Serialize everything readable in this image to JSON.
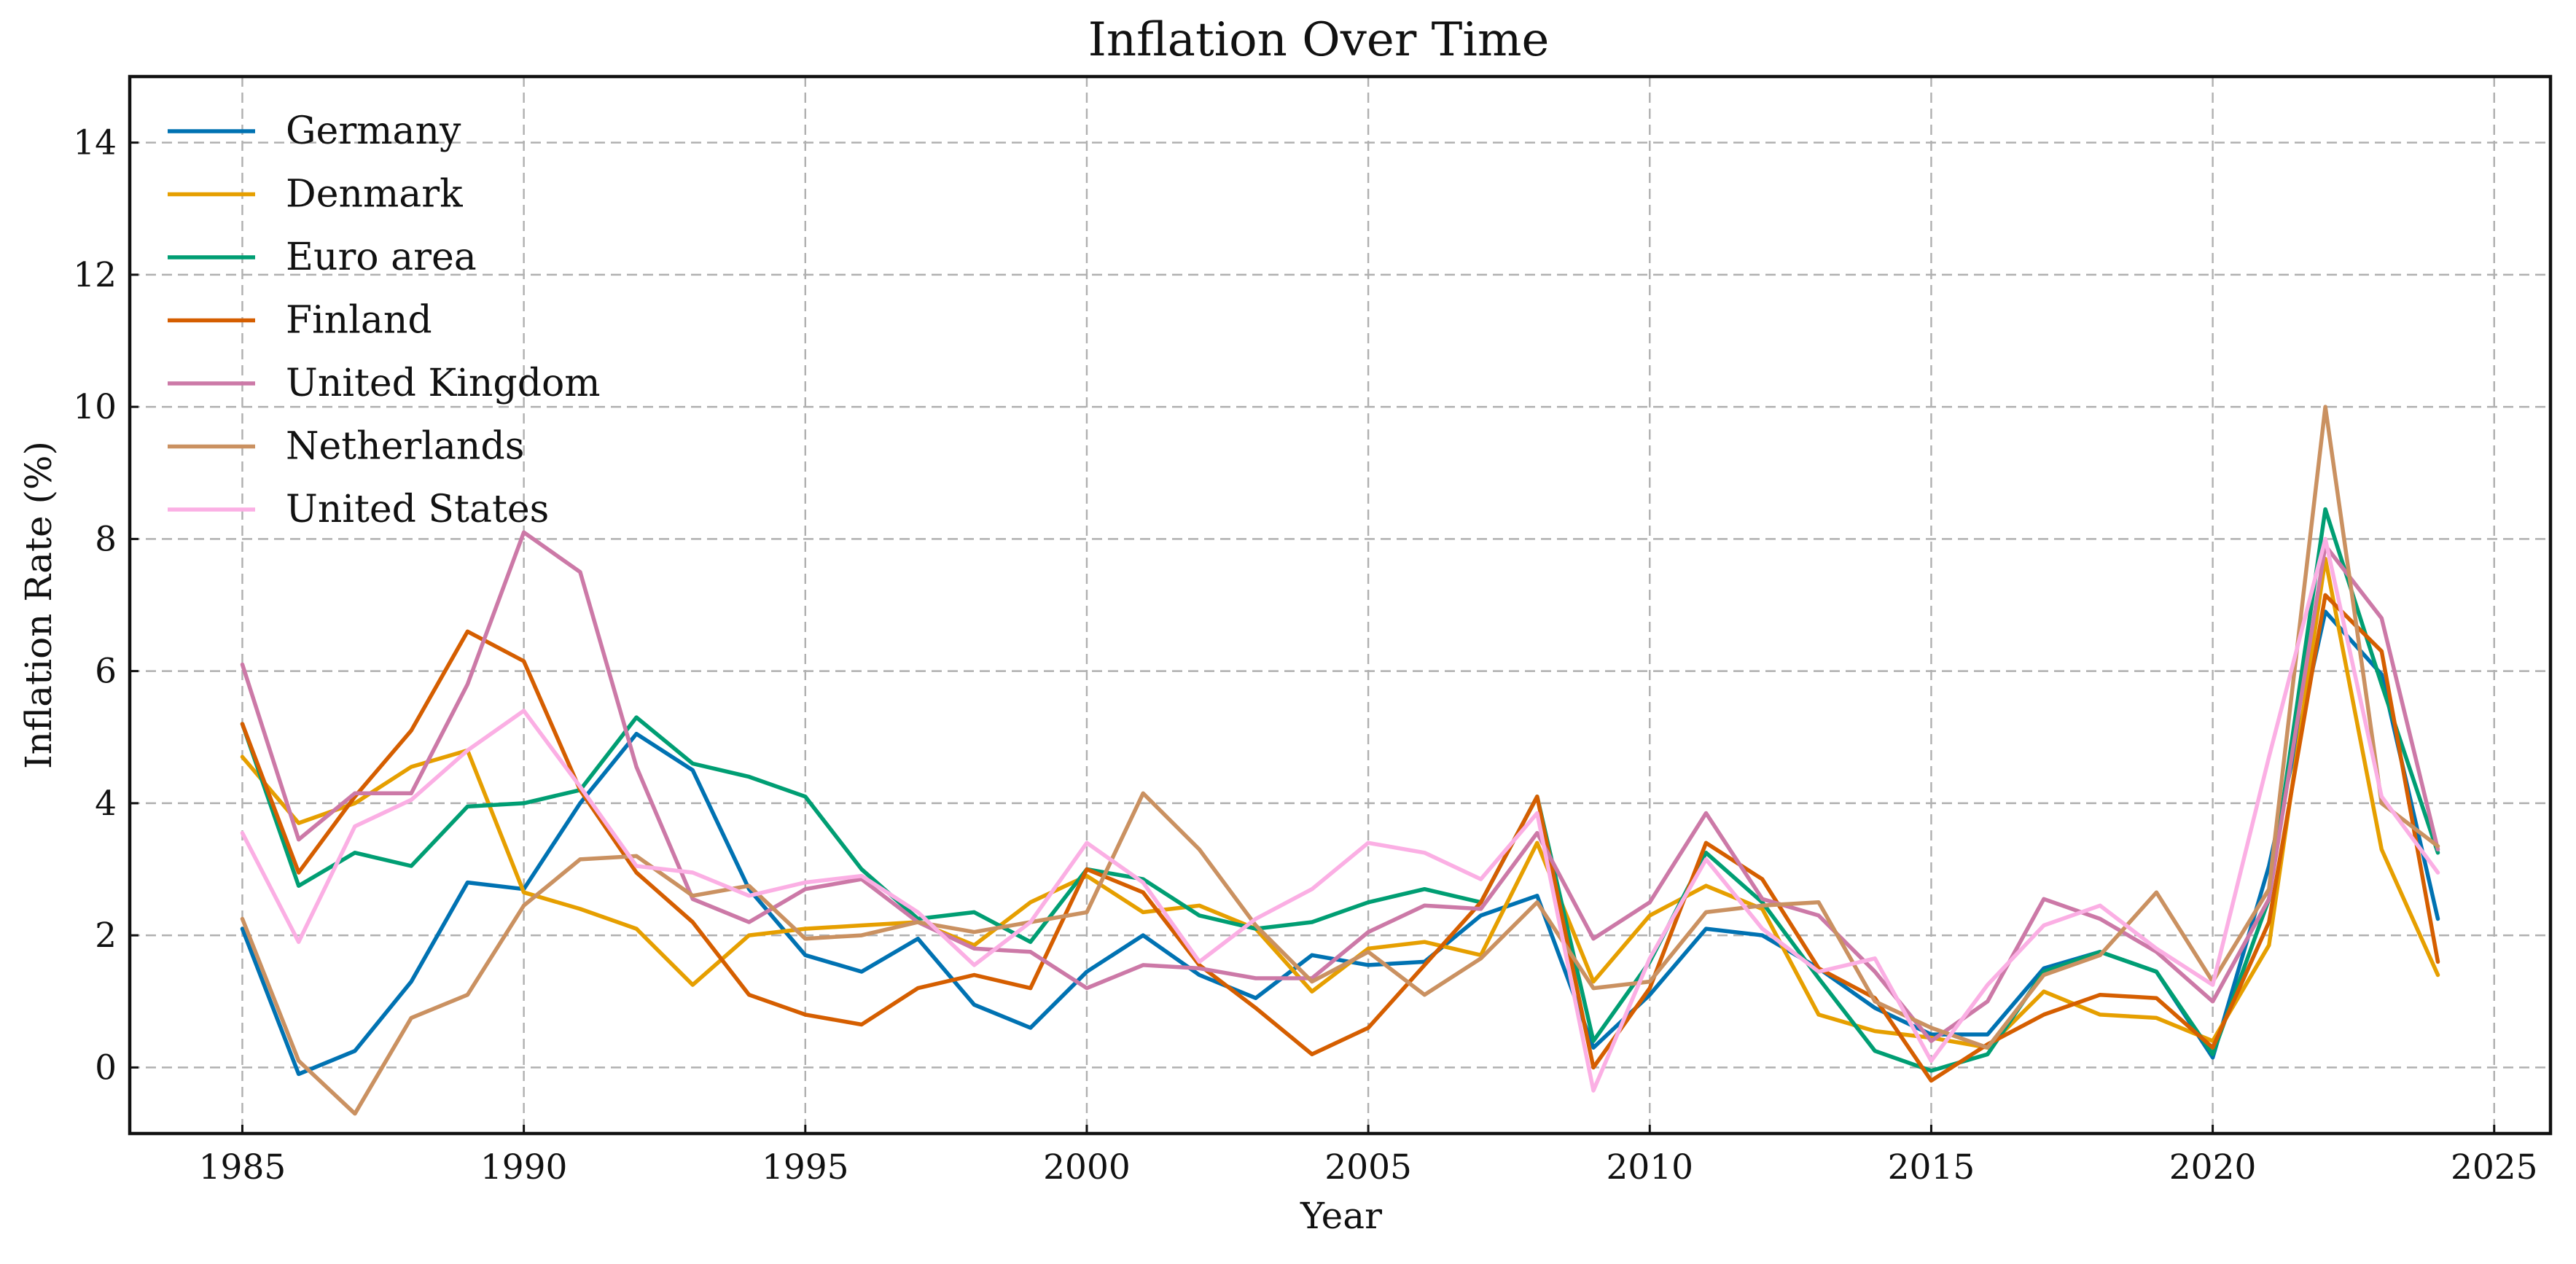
{
  "chart_data": {
    "type": "line",
    "title": "Inflation Over Time",
    "xlabel": "Year",
    "ylabel": "Inflation Rate (%)",
    "xlim": [
      1983,
      2026
    ],
    "ylim": [
      -1,
      15
    ],
    "xticks": [
      1985,
      1990,
      1995,
      2000,
      2005,
      2010,
      2015,
      2020,
      2025
    ],
    "yticks": [
      0,
      2,
      4,
      6,
      8,
      10,
      12,
      14
    ],
    "grid": true,
    "legend_position": "top-left",
    "x": [
      1985,
      1986,
      1987,
      1988,
      1989,
      1990,
      1991,
      1992,
      1993,
      1994,
      1995,
      1996,
      1997,
      1998,
      1999,
      2000,
      2001,
      2002,
      2003,
      2004,
      2005,
      2006,
      2007,
      2008,
      2009,
      2010,
      2011,
      2012,
      2013,
      2014,
      2015,
      2016,
      2017,
      2018,
      2019,
      2020,
      2021,
      2022,
      2023,
      2024
    ],
    "series": [
      {
        "name": "Germany",
        "color": "#0072b2",
        "values": [
          2.1,
          -0.1,
          0.25,
          1.3,
          2.8,
          2.7,
          4.0,
          5.05,
          4.5,
          2.7,
          1.7,
          1.45,
          1.95,
          0.95,
          0.6,
          1.45,
          2.0,
          1.4,
          1.05,
          1.7,
          1.55,
          1.6,
          2.3,
          2.6,
          0.3,
          1.1,
          2.1,
          2.0,
          1.5,
          0.9,
          0.5,
          0.5,
          1.5,
          1.75,
          1.45,
          0.15,
          3.05,
          6.9,
          5.95,
          2.25
        ]
      },
      {
        "name": "Denmark",
        "color": "#e69f00",
        "values": [
          4.7,
          3.7,
          4.0,
          4.55,
          4.8,
          2.65,
          2.4,
          2.1,
          1.25,
          2.0,
          2.1,
          2.15,
          2.2,
          1.85,
          2.5,
          2.9,
          2.35,
          2.45,
          2.1,
          1.15,
          1.8,
          1.9,
          1.7,
          3.4,
          1.3,
          2.3,
          2.75,
          2.4,
          0.8,
          0.55,
          0.45,
          0.3,
          1.15,
          0.8,
          0.75,
          0.4,
          1.85,
          7.7,
          3.3,
          1.4
        ]
      },
      {
        "name": "Euro area",
        "color": "#009e73",
        "values": [
          5.2,
          2.75,
          3.25,
          3.05,
          3.95,
          4.0,
          4.2,
          5.3,
          4.6,
          4.4,
          4.1,
          3.0,
          2.25,
          2.35,
          1.9,
          3.0,
          2.85,
          2.3,
          2.1,
          2.2,
          2.5,
          2.7,
          2.5,
          4.1,
          0.4,
          1.6,
          3.25,
          2.5,
          1.35,
          0.25,
          -0.05,
          0.2,
          1.45,
          1.75,
          1.45,
          0.2,
          2.55,
          8.45,
          5.8,
          3.25
        ]
      },
      {
        "name": "Finland",
        "color": "#d55e00",
        "values": [
          5.2,
          2.95,
          4.1,
          5.1,
          6.6,
          6.15,
          4.2,
          2.95,
          2.2,
          1.1,
          0.8,
          0.65,
          1.2,
          1.4,
          1.2,
          3.0,
          2.65,
          1.55,
          0.9,
          0.2,
          0.6,
          1.55,
          2.5,
          4.1,
          0.0,
          1.2,
          3.4,
          2.85,
          1.5,
          1.05,
          -0.2,
          0.35,
          0.8,
          1.1,
          1.05,
          0.3,
          2.2,
          7.15,
          6.3,
          1.6
        ]
      },
      {
        "name": "United Kingdom",
        "color": "#cc79a7",
        "values": [
          6.1,
          3.45,
          4.15,
          4.15,
          5.8,
          8.1,
          7.5,
          4.55,
          2.55,
          2.2,
          2.7,
          2.85,
          2.2,
          1.8,
          1.75,
          1.2,
          1.55,
          1.5,
          1.35,
          1.35,
          2.05,
          2.45,
          2.4,
          3.55,
          1.95,
          2.5,
          3.85,
          2.55,
          2.3,
          1.45,
          0.4,
          1.0,
          2.55,
          2.25,
          1.75,
          1.0,
          2.55,
          7.9,
          6.8,
          3.3
        ]
      },
      {
        "name": "Netherlands",
        "color": "#ca9161",
        "values": [
          2.25,
          0.1,
          -0.7,
          0.75,
          1.1,
          2.45,
          3.15,
          3.2,
          2.6,
          2.75,
          1.95,
          2.0,
          2.2,
          2.05,
          2.2,
          2.35,
          4.15,
          3.3,
          2.15,
          1.3,
          1.75,
          1.1,
          1.65,
          2.5,
          1.2,
          1.3,
          2.35,
          2.45,
          2.5,
          1.0,
          0.6,
          0.3,
          1.4,
          1.7,
          2.65,
          1.3,
          2.7,
          10.0,
          4.0,
          3.35
        ]
      },
      {
        "name": "United States",
        "color": "#fbafe4",
        "values": [
          3.55,
          1.9,
          3.65,
          4.05,
          4.8,
          5.4,
          4.25,
          3.05,
          2.95,
          2.6,
          2.8,
          2.9,
          2.35,
          1.55,
          2.2,
          3.4,
          2.8,
          1.6,
          2.25,
          2.7,
          3.4,
          3.25,
          2.85,
          3.85,
          -0.35,
          1.65,
          3.15,
          2.1,
          1.45,
          1.65,
          0.1,
          1.25,
          2.15,
          2.45,
          1.8,
          1.25,
          4.7,
          8.0,
          4.1,
          2.95
        ]
      }
    ]
  }
}
